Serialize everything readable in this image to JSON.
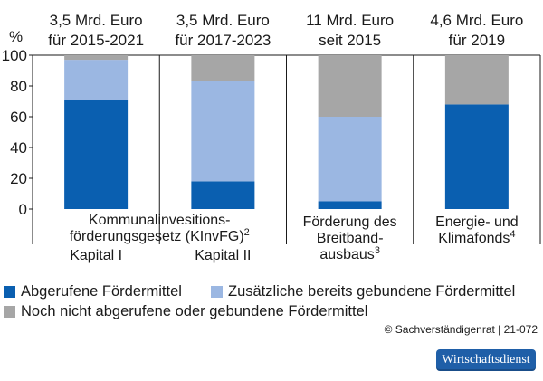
{
  "chart_data": {
    "type": "bar",
    "stacked": true,
    "ylabel": "%",
    "ylim": [
      0,
      100
    ],
    "yticks": [
      0,
      20,
      40,
      60,
      80,
      100
    ],
    "grid": false,
    "bars": [
      {
        "head_line1": "3,5 Mrd. Euro",
        "head_line2": "für 2015-2021",
        "label": "Kapital I"
      },
      {
        "head_line1": "3,5 Mrd. Euro",
        "head_line2": "für 2017-2023",
        "label": "Kapital II"
      },
      {
        "head_line1": "11 Mrd. Euro",
        "head_line2": "seit 2015",
        "label": ""
      },
      {
        "head_line1": "4,6 Mrd. Euro",
        "head_line2": "für 2019",
        "label": ""
      }
    ],
    "series": [
      {
        "name": "Abgerufene Fördermittel",
        "color": "#0a5fb0",
        "values": [
          71,
          18,
          5,
          68
        ]
      },
      {
        "name": "Zusätzliche bereits gebundene Fördermittel",
        "color": "#9bb7e2",
        "values": [
          26,
          65,
          55,
          0
        ]
      },
      {
        "name": "Noch nicht abgerufene oder gebundene Fördermittel",
        "color": "#a6a6a6",
        "values": [
          3,
          17,
          40,
          32
        ]
      }
    ],
    "group_labels": [
      {
        "lines": [
          "Kommunalinvesitions-",
          "förderungsgesetz (KInvFG)"
        ],
        "sup": "2"
      },
      {
        "lines": [
          "Förderung des",
          "Breitband-",
          "ausbaus"
        ],
        "sup": "3"
      },
      {
        "lines": [
          "Energie- und",
          "Klimafonds"
        ],
        "sup": "4"
      }
    ]
  },
  "legend": [
    {
      "label": "Abgerufene Fördermittel",
      "color": "#0a5fb0"
    },
    {
      "label": "Zusätzliche bereits gebundene Fördermittel",
      "color": "#9bb7e2"
    },
    {
      "label": "Noch nicht abgerufene oder gebundene Fördermittel",
      "color": "#a6a6a6"
    }
  ],
  "credit": "© Sachverständigenrat | 21-072",
  "brand": "Wirtschaftsdienst"
}
